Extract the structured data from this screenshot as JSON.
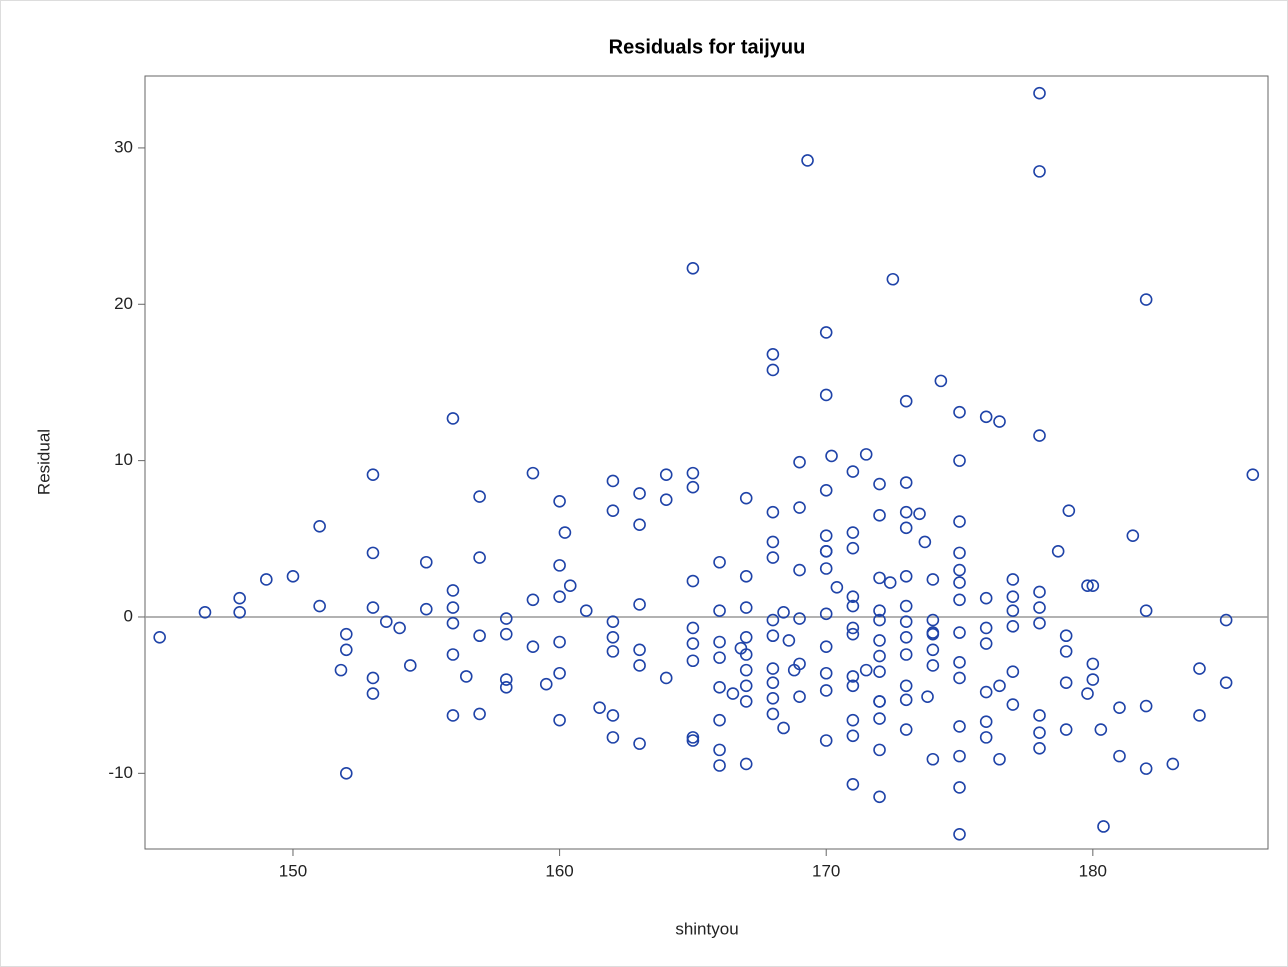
{
  "chart_data": {
    "type": "scatter",
    "title": "Residuals for taijyuu",
    "x_label": "shintyou",
    "y_label": "Residual",
    "color": "#1f43a8",
    "reference_line": 0,
    "xlim": [
      144.45,
      186.57
    ],
    "ylim": [
      -14.84,
      34.6
    ],
    "xticks": [
      150,
      160,
      170,
      180
    ],
    "yticks": [
      -10,
      0,
      10,
      20,
      30
    ],
    "x": [
      145,
      146.7,
      148,
      148,
      149,
      150,
      151,
      151,
      151.8,
      152,
      152,
      152,
      153,
      153,
      153,
      153,
      153,
      153.5,
      154,
      154.4,
      155,
      155,
      156,
      156,
      156,
      156,
      156,
      156,
      156.5,
      157,
      157,
      157,
      157,
      158,
      158,
      158,
      158,
      159,
      159,
      159,
      159.5,
      160,
      160,
      160,
      160,
      160,
      160,
      160.2,
      160.4,
      161,
      161.5,
      162,
      162,
      162,
      162,
      162,
      162,
      162,
      163,
      163,
      163,
      163,
      163,
      163,
      164,
      164,
      164,
      165,
      165,
      165,
      165,
      165,
      165,
      165,
      165,
      165,
      166,
      166,
      166,
      166,
      166,
      166,
      166,
      166,
      166.5,
      166.8,
      167,
      167,
      167,
      167,
      167,
      167,
      167,
      167,
      167,
      168,
      168,
      168,
      168,
      168,
      168,
      168,
      168,
      168,
      168,
      168,
      168.4,
      168.4,
      168.6,
      168.8,
      169,
      169,
      169,
      169,
      169,
      169,
      169.3,
      170,
      170,
      170,
      170,
      170,
      170,
      170,
      170,
      170,
      170,
      170,
      170,
      170.4,
      170.2,
      171,
      171,
      171,
      171,
      171,
      171,
      171,
      171,
      171,
      171,
      171,
      171,
      171.5,
      171.5,
      172,
      172,
      172,
      172,
      172,
      172,
      172,
      172,
      172,
      172,
      172,
      172,
      172,
      172.4,
      172.5,
      173,
      173,
      173,
      173,
      173,
      173,
      173,
      173,
      173,
      173,
      173,
      173,
      173.5,
      173.8,
      173.7,
      174,
      174,
      174,
      174,
      174,
      174,
      174,
      174.3,
      175,
      175,
      175,
      175,
      175,
      175,
      175,
      175,
      175,
      175,
      175,
      175,
      175,
      175,
      176,
      176,
      176,
      176,
      176,
      176,
      176,
      176.5,
      176.5,
      176.5,
      177,
      177,
      177,
      177,
      177,
      177,
      178,
      178,
      178,
      178,
      178,
      178,
      178,
      178,
      178,
      178.7,
      179.1,
      179,
      179,
      179,
      179,
      179.8,
      180,
      179.8,
      180,
      180,
      180.3,
      180.4,
      181,
      181,
      181.5,
      182,
      182,
      182,
      182,
      183,
      184,
      184,
      185,
      185,
      186
    ],
    "values": [
      -1.3,
      0.3,
      1.2,
      0.3,
      2.4,
      2.6,
      5.8,
      0.7,
      -3.4,
      -1.1,
      -2.1,
      -10.0,
      9.1,
      4.1,
      0.6,
      -3.9,
      -4.9,
      -0.3,
      -0.7,
      -3.1,
      3.5,
      0.5,
      12.7,
      1.7,
      0.6,
      -0.4,
      -2.4,
      -6.3,
      -3.8,
      7.7,
      3.8,
      -1.2,
      -6.2,
      -0.1,
      -1.1,
      -4.0,
      -4.5,
      9.2,
      1.1,
      -1.9,
      -4.3,
      7.4,
      3.3,
      1.3,
      -1.6,
      -3.6,
      -6.6,
      5.4,
      2.0,
      0.4,
      -5.8,
      8.7,
      6.8,
      -0.3,
      -1.3,
      -2.2,
      -6.3,
      -7.7,
      7.9,
      5.9,
      0.8,
      -2.1,
      -3.1,
      -8.1,
      9.1,
      7.5,
      -3.9,
      22.3,
      9.2,
      8.3,
      2.3,
      -0.7,
      -1.7,
      -2.8,
      -7.7,
      -7.9,
      3.5,
      0.4,
      -1.6,
      -2.6,
      -4.5,
      -6.6,
      -8.5,
      -9.5,
      -4.9,
      -2.0,
      7.6,
      2.6,
      0.6,
      -1.3,
      -2.4,
      -3.4,
      -4.4,
      -5.4,
      -9.4,
      16.8,
      15.8,
      6.7,
      4.8,
      3.8,
      -0.2,
      -1.2,
      -3.3,
      -4.2,
      -5.2,
      -6.2,
      0.3,
      -7.1,
      -1.5,
      -3.4,
      9.9,
      7.0,
      3.0,
      -0.1,
      -3.0,
      -5.1,
      29.2,
      18.2,
      14.2,
      8.1,
      5.2,
      4.2,
      3.1,
      0.2,
      -1.9,
      -3.6,
      -4.7,
      -7.9,
      4.2,
      1.9,
      10.3,
      9.3,
      5.4,
      4.4,
      1.3,
      0.7,
      -0.7,
      -3.8,
      -4.4,
      -6.6,
      -7.6,
      -10.7,
      -1.1,
      -3.4,
      10.4,
      8.5,
      6.5,
      2.5,
      0.4,
      -0.2,
      -1.5,
      -2.5,
      -3.5,
      -5.4,
      -6.5,
      -8.5,
      -11.5,
      -5.4,
      2.2,
      21.6,
      8.6,
      6.7,
      5.7,
      2.6,
      0.7,
      -0.3,
      -1.3,
      -2.4,
      -4.4,
      -5.3,
      -7.2,
      13.8,
      6.6,
      -5.1,
      4.8,
      2.4,
      -0.2,
      -1.1,
      -2.1,
      -3.1,
      -9.1,
      -1.0,
      15.1,
      13.1,
      10.0,
      6.1,
      4.1,
      3.0,
      1.1,
      -1.0,
      -2.9,
      -3.9,
      -7.0,
      -8.9,
      -10.9,
      -13.9,
      2.2,
      1.2,
      -0.7,
      -1.7,
      -4.8,
      -6.7,
      -7.7,
      12.8,
      -9.1,
      -4.4,
      12.5,
      2.4,
      1.3,
      0.4,
      -0.6,
      -3.5,
      -5.6,
      33.5,
      28.5,
      11.6,
      1.6,
      0.6,
      -0.4,
      -6.3,
      -7.4,
      -8.4,
      4.2,
      6.8,
      -1.2,
      -2.2,
      -4.2,
      -7.2,
      2.0,
      2.0,
      -4.9,
      -3.0,
      -4.0,
      -7.2,
      -13.4,
      -5.8,
      -8.9,
      5.2,
      20.3,
      0.4,
      -5.7,
      -9.7,
      -9.4,
      -3.3,
      -6.3,
      -0.2,
      -4.2,
      9.1
    ]
  }
}
